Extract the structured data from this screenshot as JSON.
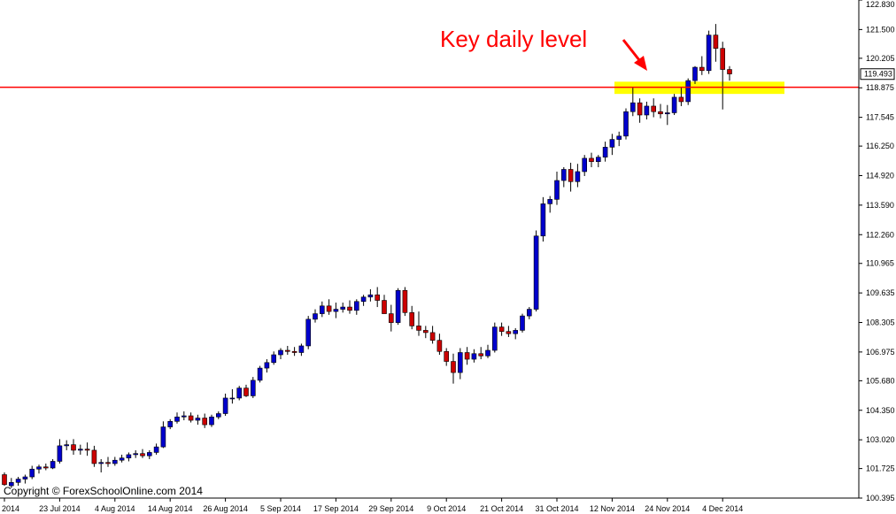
{
  "colors": {
    "background": "#ffffff",
    "bull_candle": "#0000cc",
    "bear_candle": "#cc0000",
    "wick": "#000000",
    "key_level_line": "#ff0000",
    "highlight_zone": "#ffff00",
    "annotation": "#ff0000"
  },
  "annotation": {
    "text": "Key daily level"
  },
  "copyright": "Copyright © ForexSchoolOnline.com 2014",
  "current_price": "119.493",
  "chart_data": {
    "type": "candlestick",
    "title": "",
    "xlabel": "",
    "ylabel": "",
    "ylim": [
      100.395,
      122.83
    ],
    "grid": false,
    "y_ticks": [
      "122.830",
      "121.500",
      "120.205",
      "118.875",
      "117.545",
      "116.250",
      "114.920",
      "113.590",
      "112.260",
      "110.965",
      "109.635",
      "108.305",
      "106.975",
      "105.680",
      "104.350",
      "103.020",
      "101.725",
      "100.395"
    ],
    "x_ticks": [
      "2014",
      "23 Jul 2014",
      "4 Aug 2014",
      "14 Aug 2014",
      "26 Aug 2014",
      "5 Sep 2014",
      "17 Sep 2014",
      "29 Sep 2014",
      "9 Oct 2014",
      "21 Oct 2014",
      "31 Oct 2014",
      "12 Nov 2014",
      "24 Nov 2014",
      "4 Dec 2014"
    ],
    "key_level": 118.9,
    "zone": [
      118.6,
      119.15
    ],
    "candles": [
      {
        "o": 101.45,
        "h": 101.55,
        "l": 100.95,
        "c": 101.0
      },
      {
        "o": 100.95,
        "h": 101.3,
        "l": 100.85,
        "c": 101.1
      },
      {
        "o": 101.1,
        "h": 101.35,
        "l": 100.95,
        "c": 101.25
      },
      {
        "o": 101.25,
        "h": 101.45,
        "l": 101.05,
        "c": 101.35
      },
      {
        "o": 101.35,
        "h": 101.85,
        "l": 101.25,
        "c": 101.7
      },
      {
        "o": 101.7,
        "h": 101.9,
        "l": 101.5,
        "c": 101.8
      },
      {
        "o": 101.8,
        "h": 101.95,
        "l": 101.65,
        "c": 101.75
      },
      {
        "o": 101.75,
        "h": 102.15,
        "l": 101.7,
        "c": 102.05
      },
      {
        "o": 102.05,
        "h": 103.05,
        "l": 101.95,
        "c": 102.75
      },
      {
        "o": 102.75,
        "h": 103.0,
        "l": 102.55,
        "c": 102.8
      },
      {
        "o": 102.8,
        "h": 103.05,
        "l": 102.35,
        "c": 102.55
      },
      {
        "o": 102.55,
        "h": 102.8,
        "l": 102.35,
        "c": 102.6
      },
      {
        "o": 102.6,
        "h": 102.9,
        "l": 102.3,
        "c": 102.55
      },
      {
        "o": 102.55,
        "h": 102.75,
        "l": 101.8,
        "c": 101.95
      },
      {
        "o": 101.95,
        "h": 102.15,
        "l": 101.55,
        "c": 102.0
      },
      {
        "o": 102.0,
        "h": 102.25,
        "l": 101.8,
        "c": 101.95
      },
      {
        "o": 101.95,
        "h": 102.25,
        "l": 101.85,
        "c": 102.1
      },
      {
        "o": 102.1,
        "h": 102.35,
        "l": 102.0,
        "c": 102.2
      },
      {
        "o": 102.2,
        "h": 102.45,
        "l": 102.05,
        "c": 102.35
      },
      {
        "o": 102.35,
        "h": 102.55,
        "l": 102.2,
        "c": 102.4
      },
      {
        "o": 102.4,
        "h": 102.6,
        "l": 102.2,
        "c": 102.3
      },
      {
        "o": 102.3,
        "h": 102.55,
        "l": 102.15,
        "c": 102.45
      },
      {
        "o": 102.45,
        "h": 102.85,
        "l": 102.35,
        "c": 102.7
      },
      {
        "o": 102.7,
        "h": 103.85,
        "l": 102.65,
        "c": 103.6
      },
      {
        "o": 103.6,
        "h": 103.95,
        "l": 103.5,
        "c": 103.85
      },
      {
        "o": 103.85,
        "h": 104.25,
        "l": 103.75,
        "c": 104.05
      },
      {
        "o": 104.05,
        "h": 104.3,
        "l": 103.9,
        "c": 104.1
      },
      {
        "o": 104.1,
        "h": 104.25,
        "l": 103.8,
        "c": 103.9
      },
      {
        "o": 103.9,
        "h": 104.15,
        "l": 103.7,
        "c": 104.0
      },
      {
        "o": 104.0,
        "h": 104.2,
        "l": 103.55,
        "c": 103.7
      },
      {
        "o": 103.7,
        "h": 104.15,
        "l": 103.6,
        "c": 104.05
      },
      {
        "o": 104.05,
        "h": 104.3,
        "l": 103.95,
        "c": 104.2
      },
      {
        "o": 104.2,
        "h": 105.1,
        "l": 104.1,
        "c": 104.9
      },
      {
        "o": 104.9,
        "h": 105.3,
        "l": 104.65,
        "c": 104.9
      },
      {
        "o": 104.9,
        "h": 105.45,
        "l": 104.8,
        "c": 105.35
      },
      {
        "o": 105.35,
        "h": 105.5,
        "l": 104.95,
        "c": 105.0
      },
      {
        "o": 105.0,
        "h": 105.85,
        "l": 104.9,
        "c": 105.7
      },
      {
        "o": 105.7,
        "h": 106.35,
        "l": 105.6,
        "c": 106.25
      },
      {
        "o": 106.25,
        "h": 106.65,
        "l": 106.05,
        "c": 106.5
      },
      {
        "o": 106.5,
        "h": 107.0,
        "l": 106.4,
        "c": 106.85
      },
      {
        "o": 106.85,
        "h": 107.15,
        "l": 106.65,
        "c": 107.05
      },
      {
        "o": 107.05,
        "h": 107.25,
        "l": 106.85,
        "c": 107.0
      },
      {
        "o": 107.0,
        "h": 107.2,
        "l": 106.8,
        "c": 106.95
      },
      {
        "o": 106.95,
        "h": 107.35,
        "l": 106.8,
        "c": 107.25
      },
      {
        "o": 107.25,
        "h": 108.6,
        "l": 107.1,
        "c": 108.45
      },
      {
        "o": 108.45,
        "h": 108.9,
        "l": 108.3,
        "c": 108.7
      },
      {
        "o": 108.7,
        "h": 109.25,
        "l": 108.55,
        "c": 109.05
      },
      {
        "o": 109.05,
        "h": 109.35,
        "l": 108.65,
        "c": 108.8
      },
      {
        "o": 108.8,
        "h": 109.2,
        "l": 108.5,
        "c": 108.9
      },
      {
        "o": 108.9,
        "h": 109.2,
        "l": 108.75,
        "c": 109.0
      },
      {
        "o": 109.0,
        "h": 109.3,
        "l": 108.7,
        "c": 108.85
      },
      {
        "o": 108.85,
        "h": 109.35,
        "l": 108.65,
        "c": 109.25
      },
      {
        "o": 109.25,
        "h": 109.55,
        "l": 109.05,
        "c": 109.45
      },
      {
        "o": 109.45,
        "h": 109.8,
        "l": 109.25,
        "c": 109.55
      },
      {
        "o": 109.55,
        "h": 109.9,
        "l": 109.0,
        "c": 109.3
      },
      {
        "o": 109.3,
        "h": 109.55,
        "l": 108.8,
        "c": 108.7
      },
      {
        "o": 108.7,
        "h": 109.1,
        "l": 107.9,
        "c": 108.3
      },
      {
        "o": 108.3,
        "h": 109.85,
        "l": 108.2,
        "c": 109.75
      },
      {
        "o": 109.75,
        "h": 109.9,
        "l": 108.6,
        "c": 108.75
      },
      {
        "o": 108.75,
        "h": 109.05,
        "l": 108.0,
        "c": 108.15
      },
      {
        "o": 108.15,
        "h": 108.8,
        "l": 107.7,
        "c": 107.95
      },
      {
        "o": 107.95,
        "h": 108.15,
        "l": 107.6,
        "c": 107.85
      },
      {
        "o": 107.85,
        "h": 108.15,
        "l": 107.35,
        "c": 107.5
      },
      {
        "o": 107.5,
        "h": 107.8,
        "l": 106.85,
        "c": 107.0
      },
      {
        "o": 107.0,
        "h": 107.15,
        "l": 106.35,
        "c": 106.55
      },
      {
        "o": 106.55,
        "h": 106.9,
        "l": 105.55,
        "c": 106.05
      },
      {
        "o": 106.05,
        "h": 107.15,
        "l": 105.75,
        "c": 106.95
      },
      {
        "o": 106.95,
        "h": 107.2,
        "l": 106.4,
        "c": 106.65
      },
      {
        "o": 106.65,
        "h": 107.1,
        "l": 106.5,
        "c": 106.9
      },
      {
        "o": 106.9,
        "h": 107.2,
        "l": 106.65,
        "c": 106.8
      },
      {
        "o": 106.8,
        "h": 107.3,
        "l": 106.7,
        "c": 107.05
      },
      {
        "o": 107.05,
        "h": 108.3,
        "l": 106.95,
        "c": 108.1
      },
      {
        "o": 108.1,
        "h": 108.3,
        "l": 107.7,
        "c": 107.9
      },
      {
        "o": 107.9,
        "h": 108.15,
        "l": 107.65,
        "c": 107.8
      },
      {
        "o": 107.8,
        "h": 108.05,
        "l": 107.55,
        "c": 107.95
      },
      {
        "o": 107.95,
        "h": 108.7,
        "l": 107.85,
        "c": 108.6
      },
      {
        "o": 108.6,
        "h": 109.0,
        "l": 108.45,
        "c": 108.9
      },
      {
        "o": 108.9,
        "h": 112.45,
        "l": 108.8,
        "c": 112.2
      },
      {
        "o": 112.2,
        "h": 113.95,
        "l": 111.95,
        "c": 113.65
      },
      {
        "o": 113.65,
        "h": 114.0,
        "l": 113.25,
        "c": 113.85
      },
      {
        "o": 113.85,
        "h": 115.1,
        "l": 113.6,
        "c": 114.7
      },
      {
        "o": 114.7,
        "h": 115.3,
        "l": 114.4,
        "c": 115.2
      },
      {
        "o": 115.2,
        "h": 115.5,
        "l": 114.2,
        "c": 114.65
      },
      {
        "o": 114.65,
        "h": 115.45,
        "l": 114.4,
        "c": 115.1
      },
      {
        "o": 115.1,
        "h": 115.85,
        "l": 114.9,
        "c": 115.7
      },
      {
        "o": 115.7,
        "h": 115.95,
        "l": 115.3,
        "c": 115.55
      },
      {
        "o": 115.55,
        "h": 115.85,
        "l": 115.3,
        "c": 115.75
      },
      {
        "o": 115.75,
        "h": 116.45,
        "l": 115.55,
        "c": 116.2
      },
      {
        "o": 116.2,
        "h": 116.8,
        "l": 115.85,
        "c": 116.55
      },
      {
        "o": 116.55,
        "h": 116.9,
        "l": 116.25,
        "c": 116.7
      },
      {
        "o": 116.7,
        "h": 117.95,
        "l": 116.55,
        "c": 117.8
      },
      {
        "o": 117.8,
        "h": 118.9,
        "l": 117.6,
        "c": 118.2
      },
      {
        "o": 118.2,
        "h": 118.4,
        "l": 117.3,
        "c": 117.65
      },
      {
        "o": 117.65,
        "h": 118.25,
        "l": 117.45,
        "c": 118.05
      },
      {
        "o": 118.05,
        "h": 118.4,
        "l": 117.55,
        "c": 117.8
      },
      {
        "o": 117.8,
        "h": 118.15,
        "l": 117.5,
        "c": 117.7
      },
      {
        "o": 117.7,
        "h": 118.1,
        "l": 117.2,
        "c": 117.75
      },
      {
        "o": 117.75,
        "h": 118.6,
        "l": 117.65,
        "c": 118.45
      },
      {
        "o": 118.45,
        "h": 118.9,
        "l": 118.05,
        "c": 118.25
      },
      {
        "o": 118.25,
        "h": 119.3,
        "l": 118.1,
        "c": 119.2
      },
      {
        "o": 119.2,
        "h": 119.85,
        "l": 119.05,
        "c": 119.8
      },
      {
        "o": 119.8,
        "h": 120.3,
        "l": 119.45,
        "c": 119.65
      },
      {
        "o": 119.65,
        "h": 121.45,
        "l": 119.5,
        "c": 121.25
      },
      {
        "o": 121.25,
        "h": 121.75,
        "l": 120.05,
        "c": 120.65
      },
      {
        "o": 120.65,
        "h": 120.95,
        "l": 117.9,
        "c": 119.7
      },
      {
        "o": 119.7,
        "h": 119.85,
        "l": 119.2,
        "c": 119.5
      }
    ]
  }
}
